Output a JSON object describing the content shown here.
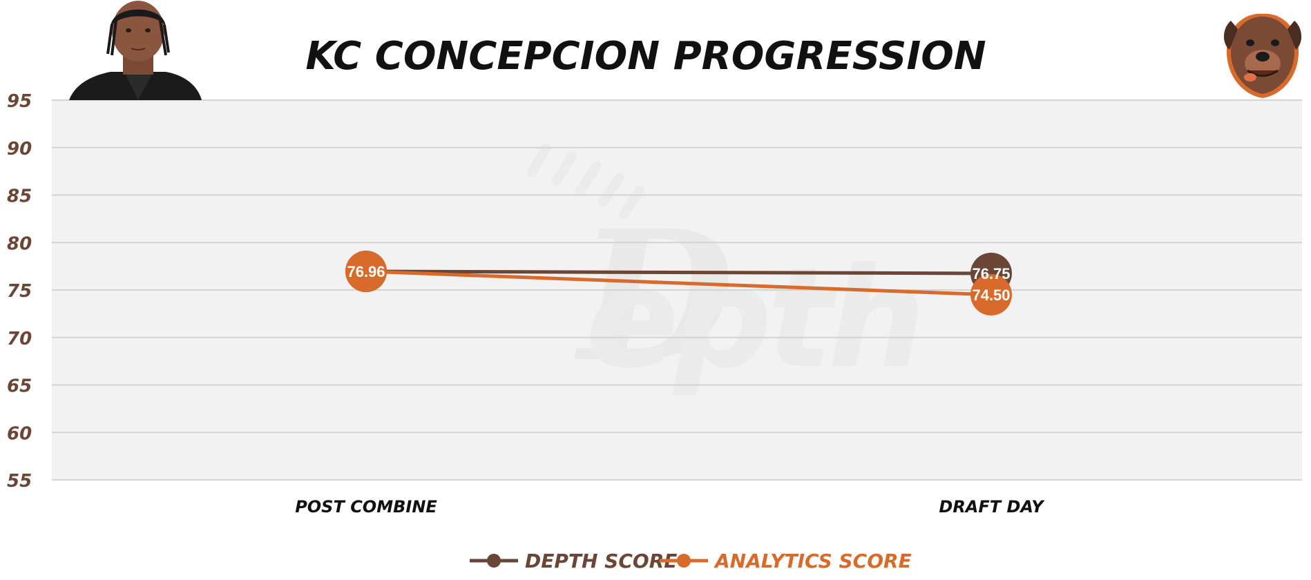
{
  "colors": {
    "depth": "#6b4535",
    "analytics": "#d86a2c",
    "tick_label": "#6b4535",
    "plot_bg": "#f2f2f2",
    "grid": "#d3d3d3",
    "title": "#111111"
  },
  "icons": {
    "player_photo": "player-photo",
    "team_logo": "dog-mascot-logo",
    "watermark": "depth-watermark"
  },
  "chart_data": {
    "type": "line",
    "title": "KC CONCEPCION PROGRESSION",
    "xlabel": "",
    "ylabel": "",
    "categories": [
      "POST COMBINE",
      "DRAFT DAY"
    ],
    "ylim": [
      55,
      95
    ],
    "yticks": [
      95,
      90,
      85,
      80,
      75,
      70,
      65,
      60,
      55
    ],
    "grid": true,
    "legend_position": "bottom-center",
    "series": [
      {
        "name": "DEPTH SCORE",
        "color": "#6b4535",
        "values": [
          76.96,
          76.75
        ],
        "labels": [
          "",
          "76.75"
        ]
      },
      {
        "name": "ANALYTICS SCORE",
        "color": "#d86a2c",
        "values": [
          76.96,
          74.5
        ],
        "labels": [
          "76.96",
          "74.50"
        ]
      }
    ]
  }
}
